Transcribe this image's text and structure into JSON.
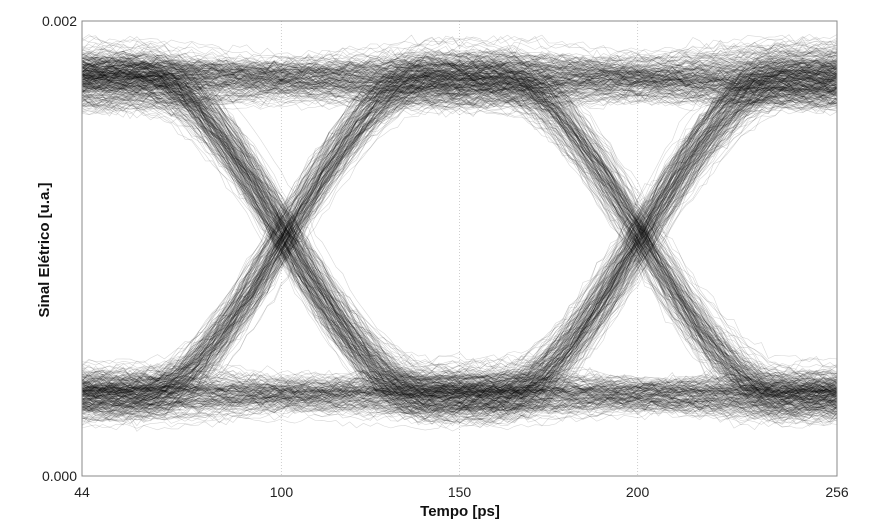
{
  "chart_data": {
    "type": "line",
    "subtype": "eye-diagram",
    "title": "",
    "xlabel": "Tempo [ps]",
    "ylabel": "Sinal Elétrico [u.a.]",
    "xlim": [
      44,
      256
    ],
    "ylim": [
      0.0,
      0.002
    ],
    "x_ticks": [
      {
        "value": 44,
        "label": "44"
      },
      {
        "value": 100,
        "label": "100"
      },
      {
        "value": 150,
        "label": "150"
      },
      {
        "value": 200,
        "label": "200"
      },
      {
        "value": 256,
        "label": "256"
      }
    ],
    "y_ticks": [
      {
        "value": 0.0,
        "label": "0.000"
      },
      {
        "value": 0.002,
        "label": "0.002"
      }
    ],
    "grid": true,
    "bit_period_ps": 100,
    "crossing_times_ps": [
      101,
      201
    ],
    "crossing_level": 0.00102,
    "levels": {
      "high_mean": 0.00175,
      "high_upper": 0.00186,
      "high_lower": 0.00162,
      "low_mean": 0.00036,
      "low_upper": 0.00046,
      "low_lower": 0.00024,
      "outer_low_edge": 0.00017
    },
    "trace_color": "#000000",
    "background_color": "#ffffff"
  }
}
